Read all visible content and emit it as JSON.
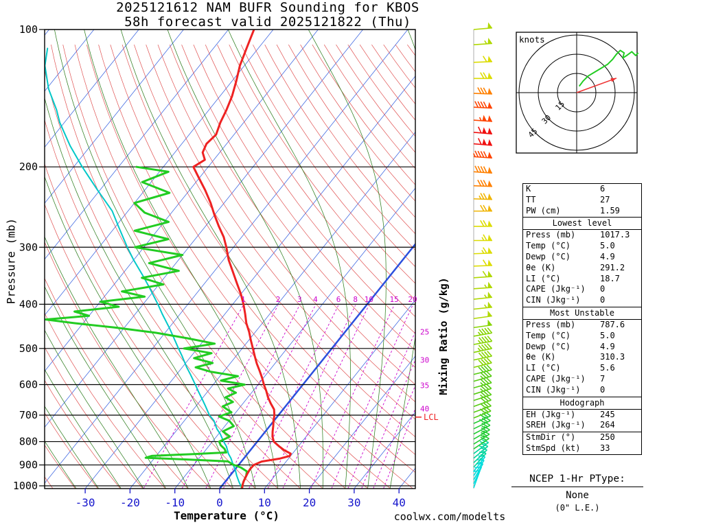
{
  "title": {
    "line1": "2025121612 NAM BUFR Sounding for KBOS",
    "line2": "58h forecast valid 2025121822 (Thu)"
  },
  "watermark": "coolwx.com/modelts",
  "chart_data": {
    "type": "line",
    "variant": "skew-t-log-p-sounding",
    "pressure_axis": {
      "label": "Pressure (mb)",
      "scale": "log",
      "ticks": [
        100,
        200,
        300,
        400,
        500,
        600,
        700,
        800,
        900,
        1000
      ],
      "range": [
        100,
        1014
      ]
    },
    "temperature_axis": {
      "label": "Temperature (°C)",
      "ticks": [
        -30,
        -20,
        -10,
        0,
        10,
        20,
        30,
        40
      ]
    },
    "mixing_ratio_axis_label": "Mixing Ratio (g/kg)",
    "temperature_profile": [
      [
        1014,
        5.0
      ],
      [
        1000,
        4.6
      ],
      [
        980,
        4.1
      ],
      [
        960,
        3.8
      ],
      [
        940,
        3.5
      ],
      [
        920,
        3.3
      ],
      [
        900,
        3.4
      ],
      [
        885,
        4.5
      ],
      [
        872,
        8.0
      ],
      [
        860,
        9.8
      ],
      [
        850,
        9.6
      ],
      [
        835,
        7.5
      ],
      [
        820,
        5.8
      ],
      [
        800,
        3.7
      ],
      [
        780,
        2.5
      ],
      [
        760,
        1.6
      ],
      [
        740,
        0.8
      ],
      [
        720,
        -0.1
      ],
      [
        700,
        -0.9
      ],
      [
        680,
        -2.0
      ],
      [
        660,
        -3.8
      ],
      [
        640,
        -5.5
      ],
      [
        620,
        -7.0
      ],
      [
        600,
        -8.7
      ],
      [
        580,
        -10.3
      ],
      [
        560,
        -12.1
      ],
      [
        540,
        -14.0
      ],
      [
        520,
        -15.8
      ],
      [
        500,
        -17.6
      ],
      [
        480,
        -19.5
      ],
      [
        460,
        -21.4
      ],
      [
        440,
        -23.6
      ],
      [
        420,
        -25.5
      ],
      [
        400,
        -27.6
      ],
      [
        380,
        -30.0
      ],
      [
        360,
        -32.8
      ],
      [
        340,
        -35.7
      ],
      [
        320,
        -38.8
      ],
      [
        300,
        -41.6
      ],
      [
        285,
        -44.0
      ],
      [
        270,
        -47.0
      ],
      [
        255,
        -50.0
      ],
      [
        240,
        -53.0
      ],
      [
        225,
        -56.5
      ],
      [
        210,
        -60.5
      ],
      [
        200,
        -63.3
      ],
      [
        193,
        -62.0
      ],
      [
        186,
        -63.8
      ],
      [
        178,
        -64.5
      ],
      [
        170,
        -64.0
      ],
      [
        160,
        -65.2
      ],
      [
        150,
        -66.1
      ],
      [
        140,
        -67.3
      ],
      [
        130,
        -69.0
      ],
      [
        120,
        -71.0
      ],
      [
        110,
        -72.6
      ],
      [
        100,
        -74.3
      ]
    ],
    "dewpoint_profile": [
      [
        1014,
        4.9
      ],
      [
        1000,
        4.5
      ],
      [
        975,
        4.0
      ],
      [
        950,
        3.6
      ],
      [
        930,
        3.0
      ],
      [
        912,
        1.0
      ],
      [
        897,
        -1.5
      ],
      [
        884,
        -3.0
      ],
      [
        876,
        -12.0
      ],
      [
        868,
        -22.0
      ],
      [
        860,
        -21.0
      ],
      [
        852,
        -12.0
      ],
      [
        845,
        -5.0
      ],
      [
        830,
        -6.0
      ],
      [
        815,
        -7.5
      ],
      [
        800,
        -8.5
      ],
      [
        780,
        -7.0
      ],
      [
        760,
        -9.5
      ],
      [
        740,
        -8.0
      ],
      [
        720,
        -10.0
      ],
      [
        705,
        -13.0
      ],
      [
        690,
        -11.0
      ],
      [
        670,
        -14.0
      ],
      [
        655,
        -12.5
      ],
      [
        640,
        -15.0
      ],
      [
        625,
        -13.5
      ],
      [
        612,
        -16.0
      ],
      [
        600,
        -13.0
      ],
      [
        588,
        -19.0
      ],
      [
        575,
        -16.0
      ],
      [
        562,
        -23.0
      ],
      [
        550,
        -27.0
      ],
      [
        538,
        -24.0
      ],
      [
        525,
        -29.0
      ],
      [
        512,
        -26.0
      ],
      [
        500,
        -33.0
      ],
      [
        488,
        -27.0
      ],
      [
        475,
        -34.0
      ],
      [
        462,
        -42.0
      ],
      [
        450,
        -52.0
      ],
      [
        440,
        -62.0
      ],
      [
        432,
        -69.0
      ],
      [
        424,
        -60.0
      ],
      [
        415,
        -64.0
      ],
      [
        405,
        -55.0
      ],
      [
        395,
        -60.0
      ],
      [
        385,
        -51.0
      ],
      [
        375,
        -57.0
      ],
      [
        362,
        -49.0
      ],
      [
        350,
        -55.0
      ],
      [
        338,
        -48.0
      ],
      [
        325,
        -56.0
      ],
      [
        312,
        -50.0
      ],
      [
        300,
        -62.0
      ],
      [
        288,
        -56.0
      ],
      [
        276,
        -65.0
      ],
      [
        264,
        -59.0
      ],
      [
        252,
        -66.0
      ],
      [
        240,
        -70.0
      ],
      [
        228,
        -64.0
      ],
      [
        216,
        -72.0
      ],
      [
        205,
        -68.0
      ],
      [
        200,
        -76.0
      ]
    ],
    "parcel_profile": [
      [
        1014,
        5.0
      ],
      [
        980,
        3.1
      ],
      [
        950,
        1.5
      ],
      [
        920,
        0.0
      ],
      [
        900,
        -1.2
      ],
      [
        870,
        -2.9
      ],
      [
        850,
        -4.3
      ],
      [
        820,
        -6.0
      ],
      [
        800,
        -7.5
      ],
      [
        770,
        -9.6
      ],
      [
        750,
        -11.3
      ],
      [
        720,
        -13.4
      ],
      [
        700,
        -15.4
      ],
      [
        670,
        -17.8
      ],
      [
        650,
        -19.5
      ],
      [
        620,
        -22.2
      ],
      [
        600,
        -24.0
      ],
      [
        570,
        -26.9
      ],
      [
        550,
        -29.0
      ],
      [
        520,
        -32.0
      ],
      [
        500,
        -34.2
      ],
      [
        470,
        -37.6
      ],
      [
        450,
        -40.0
      ],
      [
        420,
        -44.0
      ],
      [
        400,
        -46.7
      ],
      [
        370,
        -51.2
      ],
      [
        350,
        -54.5
      ],
      [
        320,
        -60.0
      ],
      [
        300,
        -63.7
      ],
      [
        270,
        -69.4
      ],
      [
        250,
        -73.5
      ],
      [
        225,
        -80.5
      ],
      [
        200,
        -88.1
      ],
      [
        180,
        -94.5
      ],
      [
        160,
        -101.0
      ],
      [
        150,
        -104.0
      ],
      [
        135,
        -109.5
      ],
      [
        120,
        -114.5
      ],
      [
        110,
        -117.0
      ]
    ],
    "lcl": {
      "pressure_mb": 707,
      "label": "LCL"
    },
    "wind_barbs_p_spd_dir": [
      [
        1010,
        9,
        200
      ],
      [
        990,
        10,
        205
      ],
      [
        970,
        11,
        210
      ],
      [
        950,
        13,
        214
      ],
      [
        930,
        14,
        218
      ],
      [
        910,
        16,
        222
      ],
      [
        890,
        17,
        226
      ],
      [
        870,
        19,
        230
      ],
      [
        850,
        21,
        233
      ],
      [
        830,
        22,
        236
      ],
      [
        810,
        24,
        238
      ],
      [
        790,
        25,
        240
      ],
      [
        770,
        26,
        242
      ],
      [
        750,
        28,
        244
      ],
      [
        730,
        29,
        246
      ],
      [
        710,
        30,
        248
      ],
      [
        690,
        31,
        250
      ],
      [
        670,
        32,
        250
      ],
      [
        650,
        33,
        252
      ],
      [
        630,
        34,
        252
      ],
      [
        610,
        36,
        254
      ],
      [
        590,
        37,
        254
      ],
      [
        570,
        39,
        256
      ],
      [
        550,
        40,
        256
      ],
      [
        530,
        42,
        258
      ],
      [
        510,
        44,
        258
      ],
      [
        490,
        45,
        260
      ],
      [
        470,
        47,
        260
      ],
      [
        450,
        49,
        262
      ],
      [
        430,
        51,
        262
      ],
      [
        410,
        53,
        264
      ],
      [
        390,
        55,
        264
      ],
      [
        370,
        57,
        266
      ],
      [
        350,
        59,
        266
      ],
      [
        330,
        61,
        268
      ],
      [
        310,
        63,
        268
      ],
      [
        290,
        66,
        270
      ],
      [
        270,
        69,
        270
      ],
      [
        250,
        72,
        270
      ],
      [
        235,
        76,
        272
      ],
      [
        220,
        81,
        272
      ],
      [
        205,
        88,
        274
      ],
      [
        190,
        97,
        274
      ],
      [
        178,
        108,
        275
      ],
      [
        168,
        112,
        275
      ],
      [
        158,
        103,
        274
      ],
      [
        148,
        92,
        273
      ],
      [
        138,
        80,
        272
      ],
      [
        128,
        68,
        270
      ],
      [
        118,
        60,
        268
      ],
      [
        108,
        55,
        266
      ],
      [
        100,
        52,
        265
      ]
    ],
    "barb_speed_colors": [
      [
        15,
        "#00dcdc"
      ],
      [
        22,
        "#00d49c"
      ],
      [
        30,
        "#22cc33"
      ],
      [
        40,
        "#55cc11"
      ],
      [
        50,
        "#86d400"
      ],
      [
        60,
        "#b0d800"
      ],
      [
        70,
        "#dcdc00"
      ],
      [
        80,
        "#f0b400"
      ],
      [
        92,
        "#ff8000"
      ],
      [
        104,
        "#ff4400"
      ],
      [
        999,
        "#f01010"
      ]
    ],
    "background": {
      "isotherms_c": {
        "min": -120,
        "max": 40,
        "step": 10
      },
      "zero_isotherm_c": 0,
      "dry_adiabats_k": {
        "min": 230,
        "max": 480,
        "step": 5
      },
      "moist_adiabat_start_temps_c": [
        -32,
        -27,
        -22,
        -17,
        -12,
        -7,
        -2,
        3,
        8,
        13,
        18,
        23,
        28,
        33,
        38
      ],
      "mixing_ratio_gkg": [
        1,
        2,
        3,
        4,
        6,
        8,
        10,
        15,
        20,
        25,
        30,
        35,
        40
      ],
      "mixing_ratio_right_labeled": [
        25,
        30,
        35,
        40
      ]
    },
    "hodograph": {
      "unit_label": "knots",
      "rings_kt": [
        15,
        30,
        45
      ],
      "trace_uv_kt": [
        [
          2,
          5
        ],
        [
          5,
          9
        ],
        [
          9,
          13
        ],
        [
          14,
          16
        ],
        [
          19,
          19
        ],
        [
          24,
          22
        ],
        [
          28,
          26
        ],
        [
          31,
          30
        ],
        [
          34,
          33
        ],
        [
          37,
          31
        ],
        [
          36,
          27
        ],
        [
          39,
          29
        ],
        [
          43,
          32
        ],
        [
          46,
          29
        ],
        [
          48,
          31
        ]
      ],
      "storm_motion_dir_spd": [
        250,
        33
      ]
    }
  },
  "stats": {
    "sections": [
      {
        "title": null,
        "rows": [
          [
            "K",
            "6"
          ],
          [
            "TT",
            "27"
          ],
          [
            "PW (cm)",
            "1.59"
          ]
        ]
      },
      {
        "title": "Lowest level",
        "rows": [
          [
            "Press (mb)",
            "1017.3"
          ],
          [
            "Temp (°C)",
            "5.0"
          ],
          [
            "Dewp (°C)",
            "4.9"
          ],
          [
            "θe (K)",
            "291.2"
          ],
          [
            "LI (°C)",
            "18.7"
          ],
          [
            "CAPE (Jkg⁻¹)",
            "0"
          ],
          [
            "CIN (Jkg⁻¹)",
            "0"
          ]
        ]
      },
      {
        "title": "Most Unstable",
        "rows": [
          [
            "Press (mb)",
            "787.6"
          ],
          [
            "Temp (°C)",
            "5.0"
          ],
          [
            "Dewp (°C)",
            "4.9"
          ],
          [
            "θe (K)",
            "310.3"
          ],
          [
            "LI (°C)",
            "5.6"
          ],
          [
            "CAPE (Jkg⁻¹)",
            "7"
          ],
          [
            "CIN (Jkg⁻¹)",
            "0"
          ]
        ]
      },
      {
        "title": "Hodograph",
        "rows": [
          [
            "EH (Jkg⁻¹)",
            "245"
          ],
          [
            "SREH (Jkg⁻¹)",
            "264"
          ]
        ]
      },
      {
        "title": null,
        "rows": [
          [
            "StmDir (°)",
            "250"
          ],
          [
            "StmSpd (kt)",
            "33"
          ]
        ]
      }
    ]
  },
  "ptype": {
    "heading": "NCEP 1-Hr PType:",
    "value": "None",
    "detail": "(0\" L.E.)"
  },
  "colors": {
    "temperature": "#ee2222",
    "dewpoint": "#22cc22",
    "parcel": "#00c8c8",
    "isotherm": "#4169e1",
    "zero_isotherm": "#2c50dd",
    "dry_adiabat": "#e05050",
    "moist_adiabat": "#2e7d1e",
    "mixing_ratio": "#cc00cc",
    "pressure_line": "#000000",
    "temp_axis": "#1515cc",
    "watermark": "#ff7373",
    "lcl": "#ee2222",
    "hodograph_trace": "#22cc22",
    "storm_motion": "#ee3333"
  }
}
